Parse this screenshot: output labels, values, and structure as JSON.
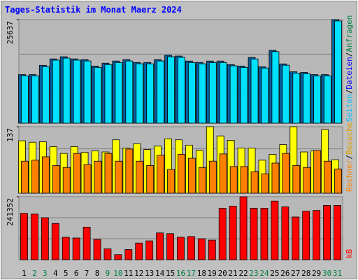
{
  "chart_data": [
    {
      "type": "bar",
      "title": "Tages-Statistik im Monat Maerz 2024",
      "ylim": [
        0,
        25637
      ],
      "yticks": [
        25637
      ],
      "series": [
        {
          "name": "Anfragen",
          "color": "#0060a0",
          "values": [
            12023,
            12023,
            14321,
            15912,
            16443,
            15912,
            15736,
            14144,
            14852,
            15382,
            15736,
            15028,
            15028,
            15736,
            16796,
            16620,
            15382,
            15028,
            15382,
            15382,
            14498,
            14144,
            16266,
            13968,
            18034,
            14675,
            12730,
            12553,
            12023,
            12023,
            25637
          ]
        },
        {
          "name": "Dateien",
          "color": "#00e0ff",
          "values": [
            11700,
            11700,
            14000,
            15600,
            16100,
            15600,
            15400,
            13800,
            14500,
            15000,
            15400,
            14700,
            14700,
            15400,
            16450,
            16300,
            15000,
            14700,
            15000,
            15000,
            14200,
            13800,
            15900,
            13650,
            17700,
            14350,
            12400,
            12250,
            11700,
            11700,
            25300
          ]
        }
      ],
      "legend_extra": {
        "text": "Seiten",
        "color": "#00c0ff"
      },
      "legend_separator": "/",
      "legend_colors": [
        "#008040",
        "#0000ff"
      ]
    },
    {
      "type": "bar",
      "ylim": [
        0,
        137
      ],
      "yticks": [
        137
      ],
      "series": [
        {
          "name": "Besuche",
          "color": "#ffff00",
          "values": [
            108,
            105,
            106,
            96,
            82,
            96,
            84,
            87,
            85,
            110,
            93,
            102,
            90,
            97,
            112,
            110,
            99,
            88,
            137,
            118,
            109,
            93,
            93,
            68,
            80,
            100,
            137,
            85,
            87,
            131,
            69
          ]
        },
        {
          "name": "Rechner",
          "color": "#ff8000",
          "values": [
            66,
            68,
            75,
            57,
            53,
            82,
            59,
            66,
            82,
            66,
            91,
            66,
            57,
            78,
            49,
            80,
            72,
            53,
            66,
            81,
            55,
            55,
            44,
            40,
            62,
            82,
            57,
            53,
            88,
            66,
            50
          ]
        }
      ],
      "legend_colors": [
        "#e0a000",
        "#ff8000"
      ]
    },
    {
      "type": "bar",
      "ylim": [
        0,
        241352
      ],
      "yticks": [
        241352
      ],
      "series": [
        {
          "name": "kB",
          "color": "#ff0000",
          "values": [
            177536,
            174762,
            160892,
            138700,
            85994,
            83220,
            124830,
            77672,
            41610,
            19418,
            38836,
            63802,
            72124,
            102638,
            99864,
            85994,
            88768,
            80446,
            74898,
            196954,
            205276,
            241352,
            196954,
            196954,
            224694,
            202502,
            163666,
            185858,
            188632,
            208050,
            208050
          ]
        }
      ],
      "legend_colors": [
        "#ff0000"
      ],
      "categories": [
        "1",
        "2",
        "3",
        "4",
        "5",
        "6",
        "7",
        "8",
        "9",
        "10",
        "11",
        "12",
        "13",
        "14",
        "15",
        "16",
        "17",
        "18",
        "19",
        "20",
        "21",
        "22",
        "23",
        "24",
        "25",
        "26",
        "27",
        "28",
        "29",
        "30",
        "31"
      ],
      "category_colors": [
        "#000000",
        "#008040",
        "#008040",
        "#000000",
        "#000000",
        "#000000",
        "#000000",
        "#000000",
        "#008040",
        "#008040",
        "#000000",
        "#000000",
        "#000000",
        "#000000",
        "#000000",
        "#008040",
        "#008040",
        "#000000",
        "#000000",
        "#000000",
        "#000000",
        "#000000",
        "#008040",
        "#008040",
        "#000000",
        "#000000",
        "#000000",
        "#000000",
        "#000000",
        "#008040",
        "#008040"
      ]
    }
  ]
}
